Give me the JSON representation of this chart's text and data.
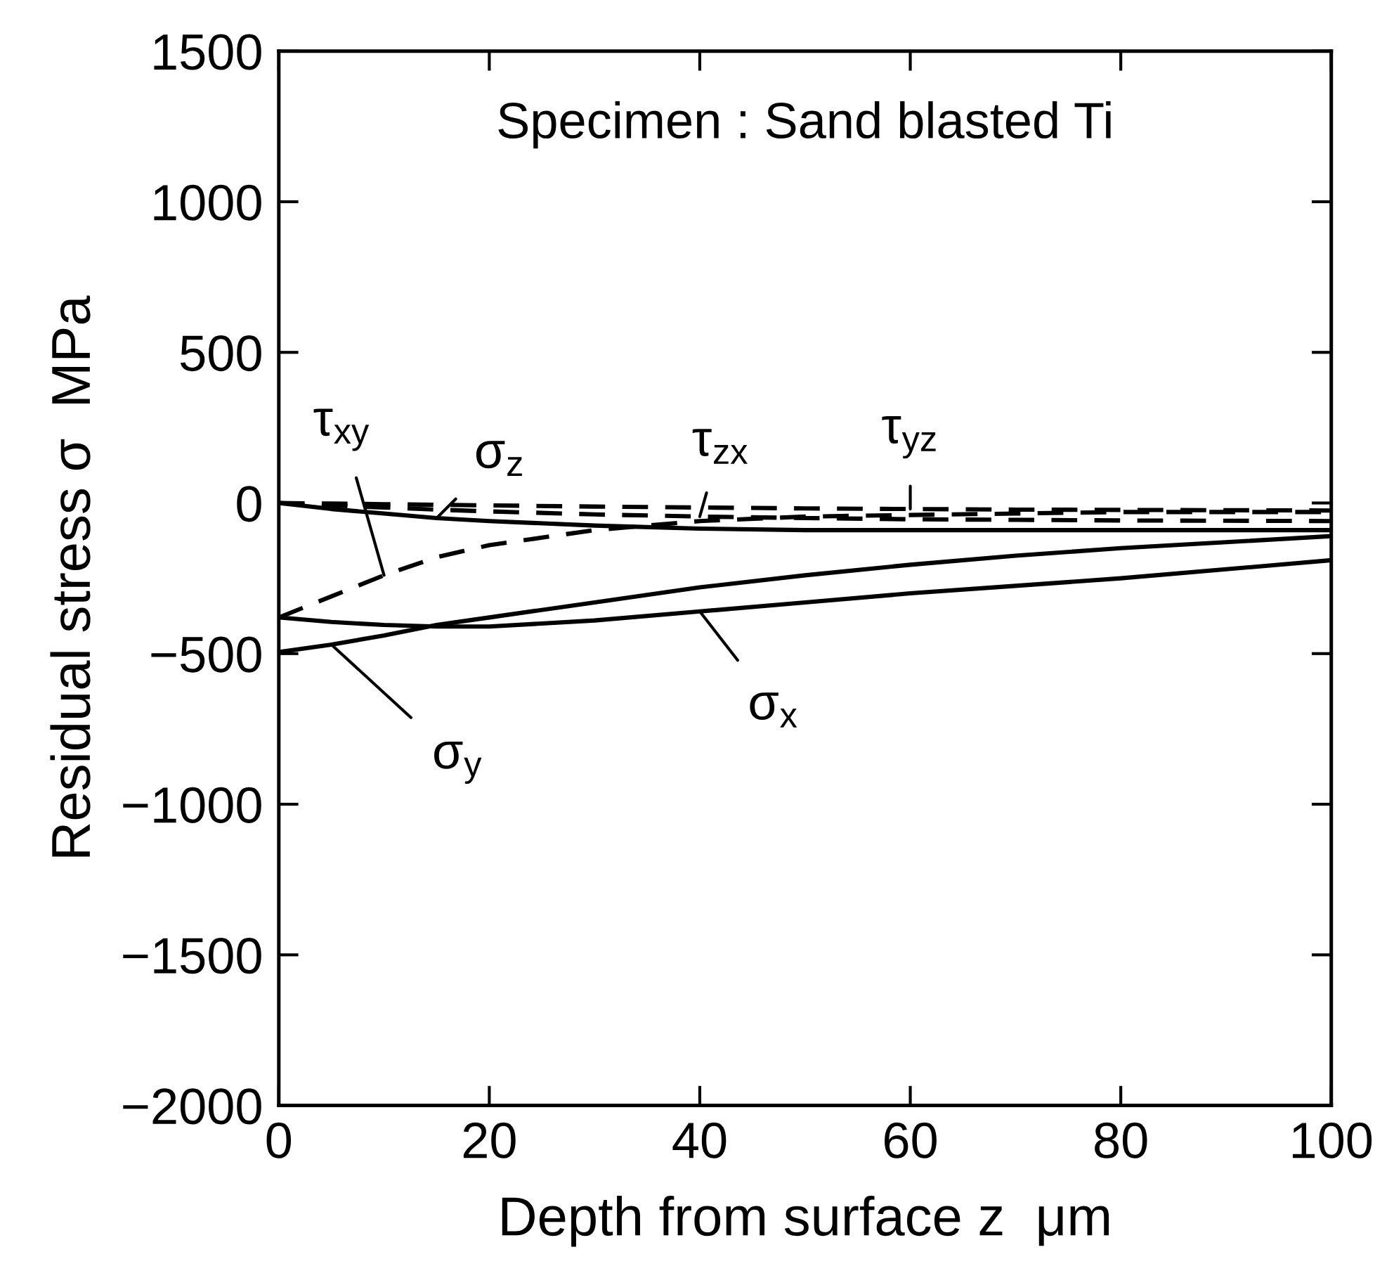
{
  "chart_data": {
    "type": "line",
    "title": "Specimen : Sand blasted Ti",
    "xlabel": "Depth from surface z  μm",
    "ylabel": "Residual stress σ  MPa",
    "x": [
      0,
      5,
      10,
      15,
      20,
      30,
      40,
      50,
      60,
      70,
      80,
      90,
      100
    ],
    "xlim": [
      0,
      100
    ],
    "xticks": [
      0,
      20,
      40,
      60,
      80,
      100
    ],
    "ylim": [
      -2000,
      1500
    ],
    "yticks": [
      -2000,
      -1500,
      -1000,
      -500,
      0,
      500,
      1000,
      1500
    ],
    "grid": false,
    "marker": "none",
    "series": [
      {
        "name": "σ$_{x}$",
        "color": "#000000",
        "line_style": "solid",
        "values": [
          -380,
          -395,
          -405,
          -410,
          -410,
          -390,
          -360,
          -330,
          -300,
          -275,
          -250,
          -220,
          -190
        ]
      },
      {
        "name": "σ$_{y}$",
        "color": "#000000",
        "line_style": "solid",
        "values": [
          -495,
          -470,
          -440,
          -405,
          -380,
          -330,
          -280,
          -240,
          -205,
          -175,
          -150,
          -130,
          -110
        ]
      },
      {
        "name": "σ$_{z}$",
        "color": "#000000",
        "line_style": "solid",
        "values": [
          0,
          -20,
          -35,
          -50,
          -60,
          -75,
          -85,
          -90,
          -90,
          -90,
          -90,
          -90,
          -90
        ]
      },
      {
        "name": "τ$_{xy}$",
        "color": "#000000",
        "line_style": "dashed",
        "values": [
          -380,
          -310,
          -240,
          -180,
          -140,
          -90,
          -60,
          -45,
          -40,
          -35,
          -30,
          -30,
          -30
        ]
      },
      {
        "name": "τ$_{zx}$",
        "color": "#000000",
        "line_style": "dashed",
        "values": [
          0,
          -8,
          -15,
          -22,
          -28,
          -38,
          -45,
          -50,
          -54,
          -56,
          -58,
          -59,
          -60
        ]
      },
      {
        "name": "τ$_{yz}$",
        "color": "#000000",
        "line_style": "dashed",
        "values": [
          0,
          -2,
          -4,
          -6,
          -8,
          -12,
          -15,
          -18,
          -20,
          -22,
          -23,
          -24,
          -25
        ]
      }
    ]
  }
}
